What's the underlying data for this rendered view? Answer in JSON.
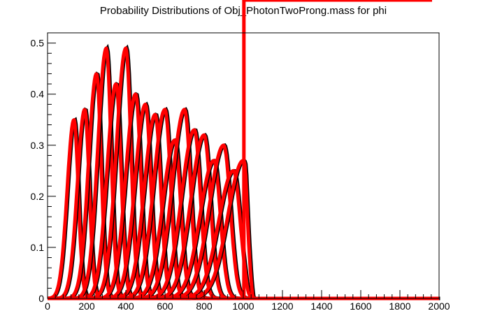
{
  "chart_data": {
    "type": "line",
    "title": "Probability Distributions of Obj_PhotonTwoProng.mass for phi",
    "xlabel": "",
    "ylabel": "",
    "xlim": [
      0,
      2000
    ],
    "ylim": [
      0,
      0.52
    ],
    "x_ticks": [
      0,
      200,
      400,
      600,
      800,
      1000,
      1200,
      1400,
      1600,
      1800,
      2000
    ],
    "y_ticks": [
      0,
      0.1,
      0.2,
      0.3,
      0.4,
      0.5
    ],
    "x_tick_labels": [
      "0",
      "200",
      "400",
      "600",
      "800",
      "1000",
      "1200",
      "1400",
      "1600",
      "1800",
      "2000"
    ],
    "y_tick_labels": [
      "0",
      "0.1",
      "0.2",
      "0.3",
      "0.4",
      "0.5"
    ],
    "grid": false,
    "legend": "none",
    "colors": {
      "main": "#ff0000",
      "shadow": "#000000"
    },
    "series": [
      {
        "peak_x": 135,
        "peak_y": 0.35
      },
      {
        "peak_x": 190,
        "peak_y": 0.37
      },
      {
        "peak_x": 250,
        "peak_y": 0.44
      },
      {
        "peak_x": 300,
        "peak_y": 0.49
      },
      {
        "peak_x": 350,
        "peak_y": 0.42
      },
      {
        "peak_x": 400,
        "peak_y": 0.49
      },
      {
        "peak_x": 450,
        "peak_y": 0.4
      },
      {
        "peak_x": 500,
        "peak_y": 0.38
      },
      {
        "peak_x": 550,
        "peak_y": 0.36
      },
      {
        "peak_x": 600,
        "peak_y": 0.37
      },
      {
        "peak_x": 650,
        "peak_y": 0.31
      },
      {
        "peak_x": 700,
        "peak_y": 0.37
      },
      {
        "peak_x": 750,
        "peak_y": 0.33
      },
      {
        "peak_x": 800,
        "peak_y": 0.32
      },
      {
        "peak_x": 850,
        "peak_y": 0.27
      },
      {
        "peak_x": 900,
        "peak_y": 0.3
      },
      {
        "peak_x": 950,
        "peak_y": 0.25
      },
      {
        "peak_x": 1000,
        "peak_y": 0.27
      }
    ]
  }
}
